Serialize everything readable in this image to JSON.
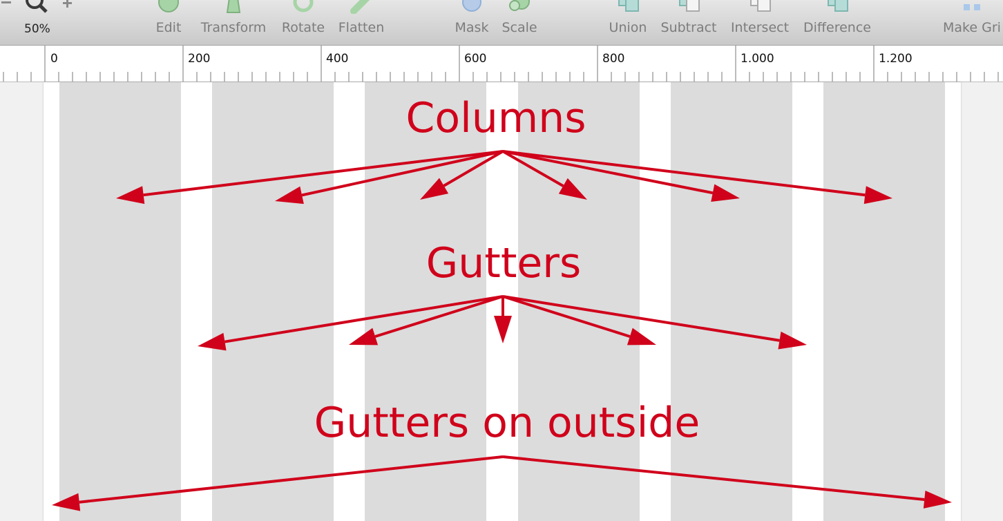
{
  "toolbar": {
    "zoom_value": "50%",
    "tools": [
      {
        "label": "Edit",
        "icon": "edit-icon"
      },
      {
        "label": "Transform",
        "icon": "transform-icon"
      },
      {
        "label": "Rotate",
        "icon": "rotate-icon"
      },
      {
        "label": "Flatten",
        "icon": "flatten-icon"
      },
      {
        "label": "Mask",
        "icon": "mask-icon"
      },
      {
        "label": "Scale",
        "icon": "scale-icon"
      },
      {
        "label": "Union",
        "icon": "union-icon"
      },
      {
        "label": "Subtract",
        "icon": "subtract-icon"
      },
      {
        "label": "Intersect",
        "icon": "intersect-icon"
      },
      {
        "label": "Difference",
        "icon": "difference-icon"
      },
      {
        "label": "Make Gri",
        "icon": "make-grid-icon"
      }
    ]
  },
  "ruler": {
    "labels": [
      "0",
      "200",
      "400",
      "600",
      "800",
      "1.000",
      "1.200"
    ]
  },
  "annotations": {
    "columns": "Columns",
    "gutters": "Gutters",
    "outside": "Gutters on outside"
  },
  "colors": {
    "annotation": "#d0021b",
    "column": "#dcdcdc",
    "artboard": "#ffffff",
    "canvas": "#f1f1f1"
  }
}
